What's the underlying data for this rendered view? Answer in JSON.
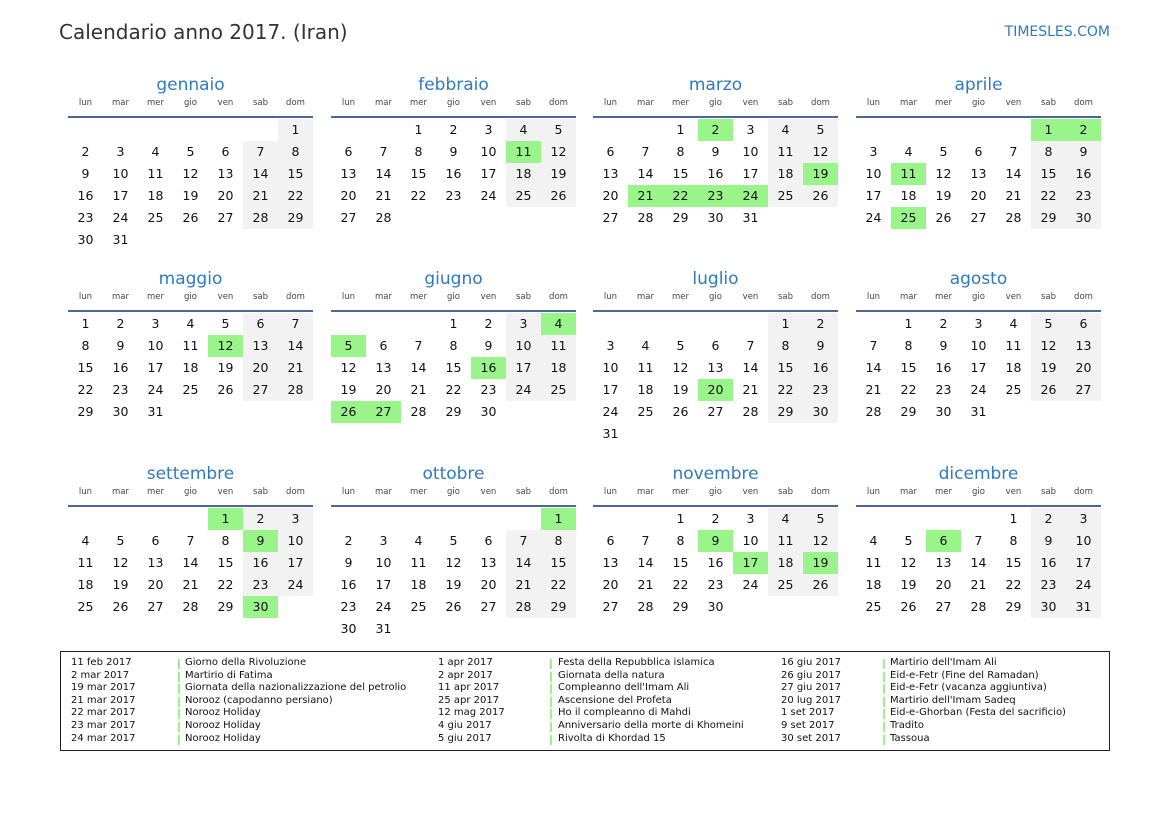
{
  "header": {
    "title": "Calendario anno 2017. (Iran)",
    "brand": "TIMESLES.COM"
  },
  "colors": {
    "accent": "#2e7ac0",
    "holiday": "#99f58a",
    "weekend": "#f2f2f2",
    "rule": "#4a6896"
  },
  "weekdays": [
    "lun",
    "mar",
    "mer",
    "gio",
    "ven",
    "sab",
    "dom"
  ],
  "months": [
    {
      "name": "gennaio",
      "weeks": [
        [
          0,
          0,
          0,
          0,
          0,
          0,
          1
        ],
        [
          2,
          3,
          4,
          5,
          6,
          7,
          8
        ],
        [
          9,
          10,
          11,
          12,
          13,
          14,
          15
        ],
        [
          16,
          17,
          18,
          19,
          20,
          21,
          22
        ],
        [
          23,
          24,
          25,
          26,
          27,
          28,
          29
        ],
        [
          30,
          31
        ]
      ],
      "holidays": []
    },
    {
      "name": "febbraio",
      "weeks": [
        [
          0,
          0,
          1,
          2,
          3,
          4,
          5
        ],
        [
          6,
          7,
          8,
          9,
          10,
          11,
          12
        ],
        [
          13,
          14,
          15,
          16,
          17,
          18,
          19
        ],
        [
          20,
          21,
          22,
          23,
          24,
          25,
          26
        ],
        [
          27,
          28
        ]
      ],
      "holidays": [
        11
      ]
    },
    {
      "name": "marzo",
      "weeks": [
        [
          0,
          0,
          1,
          2,
          3,
          4,
          5
        ],
        [
          6,
          7,
          8,
          9,
          10,
          11,
          12
        ],
        [
          13,
          14,
          15,
          16,
          17,
          18,
          19
        ],
        [
          20,
          21,
          22,
          23,
          24,
          25,
          26
        ],
        [
          27,
          28,
          29,
          30,
          31
        ]
      ],
      "holidays": [
        2,
        19,
        21,
        22,
        23,
        24
      ]
    },
    {
      "name": "aprile",
      "weeks": [
        [
          0,
          0,
          0,
          0,
          0,
          1,
          2
        ],
        [
          3,
          4,
          5,
          6,
          7,
          8,
          9
        ],
        [
          10,
          11,
          12,
          13,
          14,
          15,
          16
        ],
        [
          17,
          18,
          19,
          20,
          21,
          22,
          23
        ],
        [
          24,
          25,
          26,
          27,
          28,
          29,
          30
        ]
      ],
      "holidays": [
        1,
        2,
        11,
        25
      ]
    },
    {
      "name": "maggio",
      "weeks": [
        [
          1,
          2,
          3,
          4,
          5,
          6,
          7
        ],
        [
          8,
          9,
          10,
          11,
          12,
          13,
          14
        ],
        [
          15,
          16,
          17,
          18,
          19,
          20,
          21
        ],
        [
          22,
          23,
          24,
          25,
          26,
          27,
          28
        ],
        [
          29,
          30,
          31
        ]
      ],
      "holidays": [
        12
      ]
    },
    {
      "name": "giugno",
      "weeks": [
        [
          0,
          0,
          0,
          1,
          2,
          3,
          4
        ],
        [
          5,
          6,
          7,
          8,
          9,
          10,
          11
        ],
        [
          12,
          13,
          14,
          15,
          16,
          17,
          18
        ],
        [
          19,
          20,
          21,
          22,
          23,
          24,
          25
        ],
        [
          26,
          27,
          28,
          29,
          30
        ]
      ],
      "holidays": [
        4,
        5,
        16,
        26,
        27
      ]
    },
    {
      "name": "luglio",
      "weeks": [
        [
          0,
          0,
          0,
          0,
          0,
          1,
          2
        ],
        [
          3,
          4,
          5,
          6,
          7,
          8,
          9
        ],
        [
          10,
          11,
          12,
          13,
          14,
          15,
          16
        ],
        [
          17,
          18,
          19,
          20,
          21,
          22,
          23
        ],
        [
          24,
          25,
          26,
          27,
          28,
          29,
          30
        ],
        [
          31
        ]
      ],
      "holidays": [
        20
      ]
    },
    {
      "name": "agosto",
      "weeks": [
        [
          0,
          1,
          2,
          3,
          4,
          5,
          6
        ],
        [
          7,
          8,
          9,
          10,
          11,
          12,
          13
        ],
        [
          14,
          15,
          16,
          17,
          18,
          19,
          20
        ],
        [
          21,
          22,
          23,
          24,
          25,
          26,
          27
        ],
        [
          28,
          29,
          30,
          31
        ]
      ],
      "holidays": []
    },
    {
      "name": "settembre",
      "weeks": [
        [
          0,
          0,
          0,
          0,
          1,
          2,
          3
        ],
        [
          4,
          5,
          6,
          7,
          8,
          9,
          10
        ],
        [
          11,
          12,
          13,
          14,
          15,
          16,
          17
        ],
        [
          18,
          19,
          20,
          21,
          22,
          23,
          24
        ],
        [
          25,
          26,
          27,
          28,
          29,
          30
        ]
      ],
      "holidays": [
        1,
        9,
        30
      ]
    },
    {
      "name": "ottobre",
      "weeks": [
        [
          0,
          0,
          0,
          0,
          0,
          0,
          1
        ],
        [
          2,
          3,
          4,
          5,
          6,
          7,
          8
        ],
        [
          9,
          10,
          11,
          12,
          13,
          14,
          15
        ],
        [
          16,
          17,
          18,
          19,
          20,
          21,
          22
        ],
        [
          23,
          24,
          25,
          26,
          27,
          28,
          29
        ],
        [
          30,
          31
        ]
      ],
      "holidays": [
        1
      ]
    },
    {
      "name": "novembre",
      "weeks": [
        [
          0,
          0,
          1,
          2,
          3,
          4,
          5
        ],
        [
          6,
          7,
          8,
          9,
          10,
          11,
          12
        ],
        [
          13,
          14,
          15,
          16,
          17,
          18,
          19
        ],
        [
          20,
          21,
          22,
          23,
          24,
          25,
          26
        ],
        [
          27,
          28,
          29,
          30
        ]
      ],
      "holidays": [
        9,
        17,
        19
      ]
    },
    {
      "name": "dicembre",
      "weeks": [
        [
          0,
          0,
          0,
          0,
          1,
          2,
          3
        ],
        [
          4,
          5,
          6,
          7,
          8,
          9,
          10
        ],
        [
          11,
          12,
          13,
          14,
          15,
          16,
          17
        ],
        [
          18,
          19,
          20,
          21,
          22,
          23,
          24
        ],
        [
          25,
          26,
          27,
          28,
          29,
          30,
          31
        ]
      ],
      "holidays": [
        6
      ]
    }
  ],
  "holiday_list": [
    {
      "date": "11 feb 2017",
      "name": "Giorno della Rivoluzione"
    },
    {
      "date": "2 mar 2017",
      "name": "Martirio di Fatima"
    },
    {
      "date": "19 mar 2017",
      "name": "Giornata della nazionalizzazione del petrolio"
    },
    {
      "date": "21 mar 2017",
      "name": "Norooz (capodanno persiano)"
    },
    {
      "date": "22 mar 2017",
      "name": "Norooz Holiday"
    },
    {
      "date": "23 mar 2017",
      "name": "Norooz Holiday"
    },
    {
      "date": "24 mar 2017",
      "name": "Norooz Holiday"
    },
    {
      "date": "1 apr 2017",
      "name": "Festa della Repubblica islamica"
    },
    {
      "date": "2 apr 2017",
      "name": "Giornata della natura"
    },
    {
      "date": "11 apr 2017",
      "name": "Compleanno dell'Imam Ali"
    },
    {
      "date": "25 apr 2017",
      "name": "Ascensione del Profeta"
    },
    {
      "date": "12 mag 2017",
      "name": "Ho il compleanno di Mahdi"
    },
    {
      "date": "4 giu 2017",
      "name": "Anniversario della morte di Khomeini"
    },
    {
      "date": "5 giu 2017",
      "name": "Rivolta di Khordad 15"
    },
    {
      "date": "16 giu 2017",
      "name": "Martirio dell'Imam Ali"
    },
    {
      "date": "26 giu 2017",
      "name": "Eid-e-Fetr (Fine del Ramadan)"
    },
    {
      "date": "27 giu 2017",
      "name": "Eid-e-Fetr (vacanza aggiuntiva)"
    },
    {
      "date": "20 lug 2017",
      "name": "Martirio dell'Imam Sadeq"
    },
    {
      "date": "1 set 2017",
      "name": "Eid-e-Ghorban (Festa del sacrificio)"
    },
    {
      "date": "9 set 2017",
      "name": "Tradito"
    },
    {
      "date": "30 set 2017",
      "name": "Tassoua"
    }
  ]
}
